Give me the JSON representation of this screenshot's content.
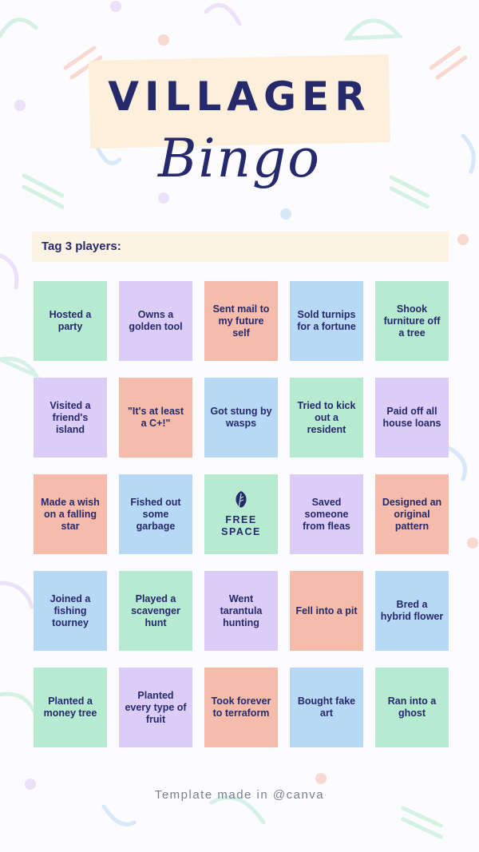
{
  "title": {
    "main": "VILLAGER",
    "script": "Bingo"
  },
  "tag_prompt": "Tag 3 players:",
  "free_space": {
    "label": "FREE SPACE",
    "icon": "leaf-icon"
  },
  "colors": {
    "green": "#b6ead1",
    "purple": "#dccdf8",
    "peach": "#f6bcab",
    "blue": "#b8d9f6",
    "text": "#26296b"
  },
  "grid": [
    [
      {
        "text": "Hosted a party",
        "color": "green"
      },
      {
        "text": "Owns a golden tool",
        "color": "purple"
      },
      {
        "text": "Sent mail to my future self",
        "color": "peach"
      },
      {
        "text": "Sold turnips for a fortune",
        "color": "blue"
      },
      {
        "text": "Shook furniture off a tree",
        "color": "green"
      }
    ],
    [
      {
        "text": "Visited a friend's island",
        "color": "purple"
      },
      {
        "text": "\"It's at least a C+!\"",
        "color": "peach"
      },
      {
        "text": "Got stung by wasps",
        "color": "blue"
      },
      {
        "text": "Tried to kick out a resident",
        "color": "green"
      },
      {
        "text": "Paid off all house loans",
        "color": "purple"
      }
    ],
    [
      {
        "text": "Made a wish on a falling star",
        "color": "peach"
      },
      {
        "text": "Fished out some garbage",
        "color": "blue"
      },
      {
        "text": "FREE SPACE",
        "color": "green",
        "free": true
      },
      {
        "text": "Saved someone from fleas",
        "color": "purple"
      },
      {
        "text": "Designed an original pattern",
        "color": "peach"
      }
    ],
    [
      {
        "text": "Joined a fishing tourney",
        "color": "blue"
      },
      {
        "text": "Played a scavenger hunt",
        "color": "green"
      },
      {
        "text": "Went tarantula hunting",
        "color": "purple"
      },
      {
        "text": "Fell into a pit",
        "color": "peach"
      },
      {
        "text": "Bred a hybrid flower",
        "color": "blue"
      }
    ],
    [
      {
        "text": "Planted a money tree",
        "color": "green"
      },
      {
        "text": "Planted every type of fruit",
        "color": "purple"
      },
      {
        "text": "Took forever to terraform",
        "color": "peach"
      },
      {
        "text": "Bought fake art",
        "color": "blue"
      },
      {
        "text": "Ran into a ghost",
        "color": "green"
      }
    ]
  ],
  "footer": "Template made in @canva"
}
